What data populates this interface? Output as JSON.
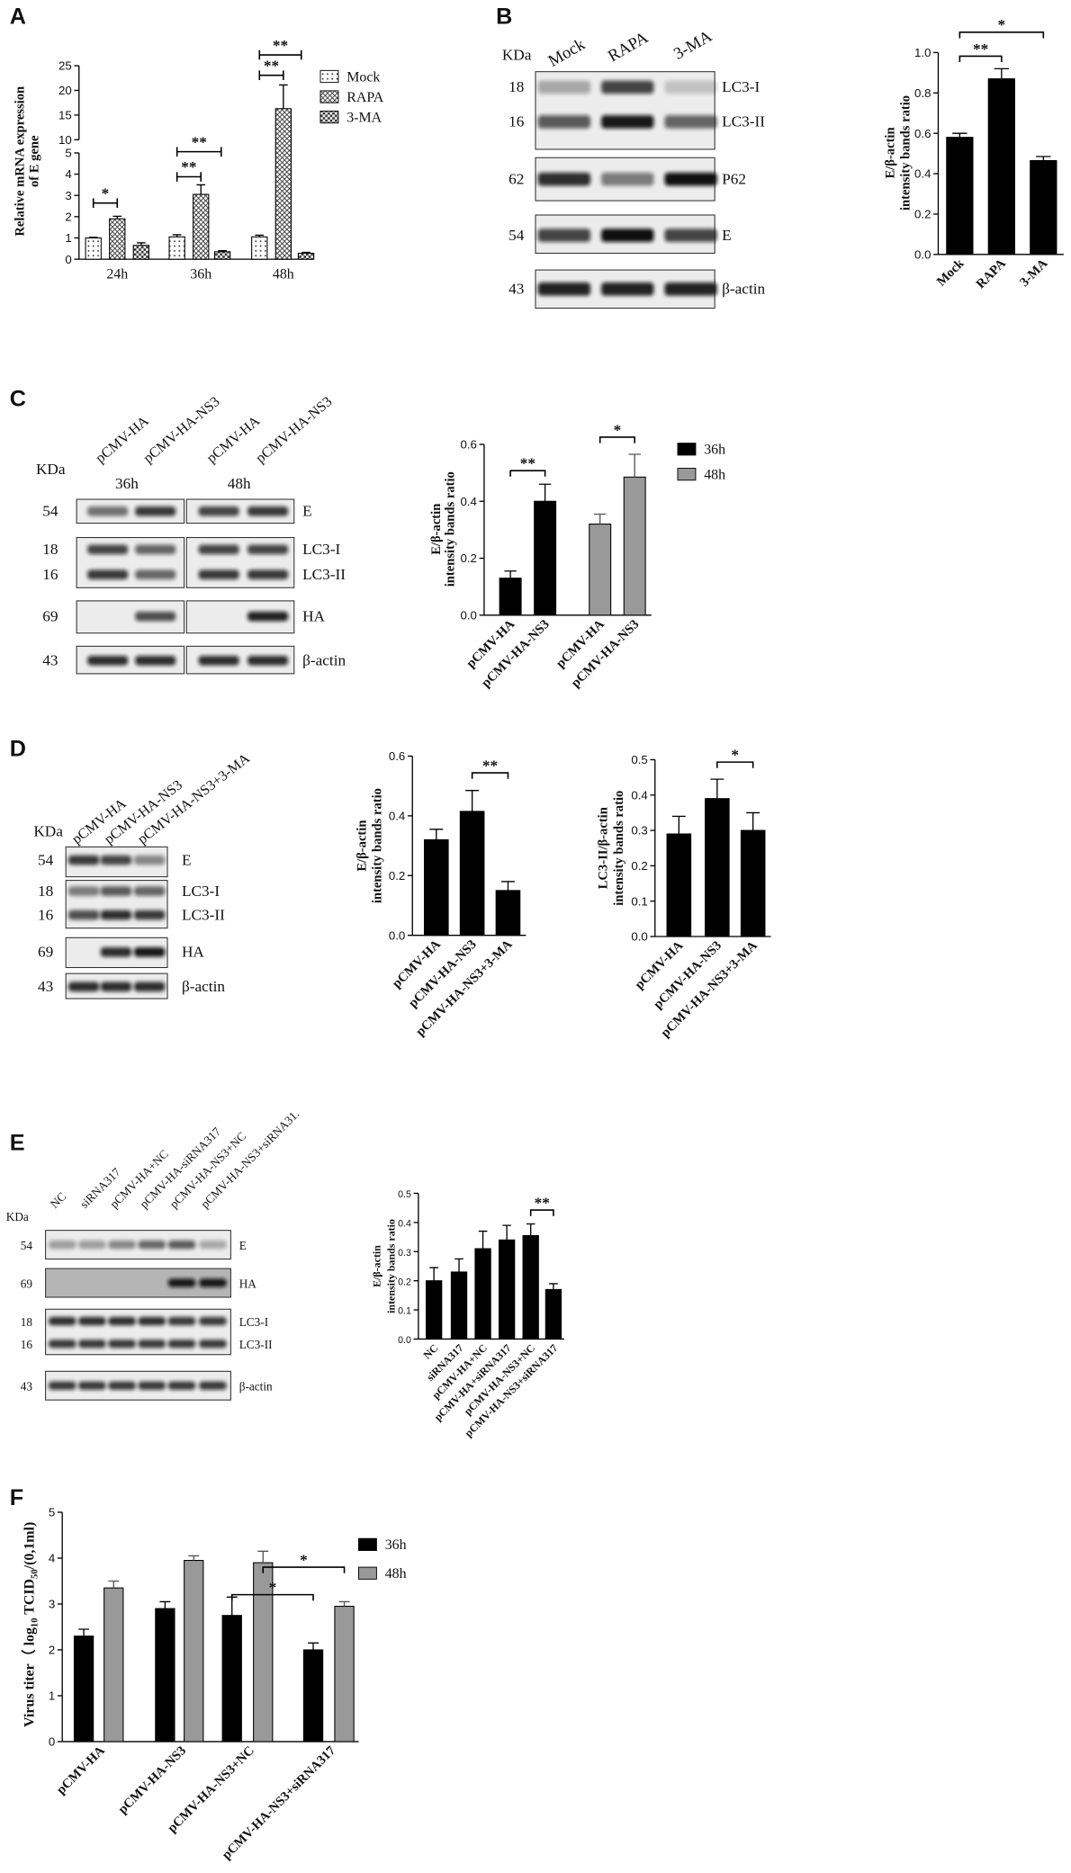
{
  "panels": [
    "A",
    "B",
    "C",
    "D",
    "E",
    "F"
  ],
  "chart_data": [
    {
      "type": "bar",
      "categories": [
        "24h",
        "36h",
        "48h"
      ],
      "series": [
        {
          "name": "Mock",
          "pattern": "dots",
          "values": [
            1.0,
            1.05,
            1.05
          ],
          "errors": [
            0.03,
            0.1,
            0.08
          ]
        },
        {
          "name": "RAPA",
          "pattern": "crosshatch",
          "values": [
            1.9,
            3.05,
            16.3
          ],
          "errors": [
            0.12,
            0.45,
            4.8
          ]
        },
        {
          "name": "3-MA",
          "pattern": "checker",
          "values": [
            0.65,
            0.35,
            0.28
          ],
          "errors": [
            0.12,
            0.05,
            0.04
          ]
        }
      ],
      "ylabel": [
        "Relative mRNA expression",
        "of E gene"
      ],
      "ylim": [
        0,
        25
      ],
      "ybreak": [
        5,
        10
      ],
      "yticks": [
        0,
        1,
        2,
        3,
        4,
        5,
        10,
        15,
        20,
        25
      ],
      "legend": "right",
      "annotations": [
        "*",
        "**",
        "**",
        "**",
        "**"
      ]
    },
    {
      "type": "bar",
      "categories": [
        "Mock",
        "RAPA",
        "3-MA"
      ],
      "values": [
        0.58,
        0.87,
        0.465
      ],
      "errors": [
        0.02,
        0.05,
        0.02
      ],
      "color": "#000000",
      "ylabel": [
        "E/β-actin",
        "intensity bands ratio"
      ],
      "ylim": [
        0,
        1
      ],
      "yticks": [
        {
          "value": 0,
          "label": "0.0"
        },
        0.2,
        0.4,
        0.6,
        0.8,
        {
          "value": 1,
          "label": "1.0"
        }
      ],
      "annotations": [
        "**",
        "*"
      ]
    },
    {
      "type": "bar",
      "categories": [
        "pCMV-HA",
        "pCMV-HA-NS3",
        "pCMV-HA",
        "pCMV-HA-NS3"
      ],
      "series": [
        {
          "name": "36h",
          "color": "#000000",
          "values": [
            0.13,
            0.4,
            null,
            null
          ],
          "errors": [
            0.025,
            0.06,
            null,
            null
          ]
        },
        {
          "name": "48h",
          "color": "#999999",
          "values": [
            null,
            null,
            0.32,
            0.485
          ],
          "errors": [
            null,
            null,
            0.035,
            0.08
          ]
        }
      ],
      "ylabel": [
        "E/β-actin",
        "intensity bands ratio"
      ],
      "ylim": [
        0,
        0.6
      ],
      "yticks": [
        {
          "value": 0,
          "label": "0.0"
        },
        0.2,
        0.4,
        0.6
      ],
      "legend": "right",
      "annotations": [
        "**",
        "*"
      ]
    },
    {
      "type": "bar",
      "categories": [
        "pCMV-HA",
        "pCMV-HA-NS3",
        "pCMV-HA-NS3+3-MA"
      ],
      "values": [
        0.32,
        0.415,
        0.15
      ],
      "errors": [
        0.035,
        0.07,
        0.03
      ],
      "color": "#000000",
      "ylabel": [
        "E/β-actin",
        "intensity bands ratio"
      ],
      "ylim": [
        0,
        0.6
      ],
      "yticks": [
        {
          "value": 0,
          "label": "0.0"
        },
        0.2,
        0.4,
        0.6
      ],
      "annotations": [
        "**"
      ]
    },
    {
      "type": "bar",
      "categories": [
        "pCMV-HA",
        "pCMV-HA-NS3",
        "pCMV-HA-NS3+3-MA"
      ],
      "values": [
        0.29,
        0.39,
        0.3
      ],
      "errors": [
        0.05,
        0.055,
        0.05
      ],
      "color": "#000000",
      "ylabel": [
        "LC3-II/β-actin",
        "intensity bands ratio"
      ],
      "ylim": [
        0,
        0.5
      ],
      "yticks": [
        {
          "value": 0,
          "label": "0.0"
        },
        0.1,
        0.2,
        0.3,
        0.4,
        0.5
      ],
      "annotations": [
        "*"
      ]
    },
    {
      "type": "bar",
      "categories": [
        "NC",
        "siRNA317",
        "pCMV-HA+NC",
        "pCMV-HA+siRNA317",
        "pCMV-HA-NS3+NC",
        "pCMV-HA-NS3+siRNA317"
      ],
      "values": [
        0.2,
        0.23,
        0.31,
        0.34,
        0.355,
        0.17
      ],
      "errors": [
        0.045,
        0.045,
        0.06,
        0.05,
        0.04,
        0.02
      ],
      "color": "#000000",
      "ylabel": [
        "E/β-actin",
        "intensity bands ratio"
      ],
      "ylim": [
        0,
        0.5
      ],
      "yticks": [
        {
          "value": 0,
          "label": "0.0"
        },
        0.1,
        0.2,
        0.3,
        0.4,
        0.5
      ],
      "annotations": [
        "**"
      ]
    },
    {
      "type": "bar",
      "categories": [
        "pCMV-HA",
        "pCMV-HA-NS3",
        "pCMV-HA-NS3+NC",
        "pCMV-HA-NS3+siRNA317"
      ],
      "series": [
        {
          "name": "36h",
          "color": "#000000",
          "values": [
            2.3,
            2.9,
            2.75,
            2.0
          ],
          "errors": [
            0.15,
            0.15,
            0.4,
            0.15
          ]
        },
        {
          "name": "48h",
          "color": "#999999",
          "values": [
            3.35,
            3.95,
            3.9,
            2.95
          ],
          "errors": [
            0.15,
            0.1,
            0.25,
            0.1
          ]
        }
      ],
      "ylabel_parts": [
        "Virus titer（ log",
        "10",
        " TCID",
        "50",
        "/(0,1ml)"
      ],
      "ylim": [
        0,
        5
      ],
      "yticks": [
        0,
        1,
        2,
        3,
        4,
        5
      ],
      "legend": "right",
      "annotations": [
        "*",
        "*"
      ]
    }
  ],
  "blots": {
    "B": {
      "kda": "KDa",
      "lanes": [
        "Mock",
        "RAPA",
        "3-MA"
      ],
      "rows": [
        {
          "mw": "18",
          "label": "LC3-I"
        },
        {
          "mw": "16",
          "label": "LC3-II"
        },
        {
          "mw": "62",
          "label": "P62"
        },
        {
          "mw": "54",
          "label": "E"
        },
        {
          "mw": "43",
          "label": "β-actin"
        }
      ]
    },
    "C": {
      "kda": "KDa",
      "lanes": [
        "pCMV-HA",
        "pCMV-HA-NS3",
        "pCMV-HA",
        "pCMV-HA-NS3"
      ],
      "groups": [
        "36h",
        "48h"
      ],
      "rows": [
        {
          "mw": "54",
          "label": "E"
        },
        {
          "mw": "18",
          "label": "LC3-I"
        },
        {
          "mw": "16",
          "label": "LC3-II"
        },
        {
          "mw": "69",
          "label": "HA"
        },
        {
          "mw": "43",
          "label": "β-actin"
        }
      ]
    },
    "D": {
      "kda": "KDa",
      "lanes": [
        "pCMV-HA",
        "pCMV-HA-NS3",
        "pCMV-HA-NS3+3-MA"
      ],
      "rows": [
        {
          "mw": "54",
          "label": "E"
        },
        {
          "mw": "18",
          "label": "LC3-I"
        },
        {
          "mw": "16",
          "label": "LC3-II"
        },
        {
          "mw": "69",
          "label": "HA"
        },
        {
          "mw": "43",
          "label": "β-actin"
        }
      ]
    },
    "E": {
      "kda": "KDa",
      "lanes": [
        "NC",
        "siRNA317",
        "pCMV-HA+NC",
        "pCMV-HA-siRNA317",
        "pCMV-HA-NS3+NC",
        "pCMV-HA-NS3+siRNA31."
      ],
      "rows": [
        {
          "mw": "54",
          "label": "E"
        },
        {
          "mw": "69",
          "label": "HA"
        },
        {
          "mw": "18",
          "label": "LC3-I"
        },
        {
          "mw": "16",
          "label": "LC3-II"
        },
        {
          "mw": "43",
          "label": "β-actin"
        }
      ]
    }
  }
}
